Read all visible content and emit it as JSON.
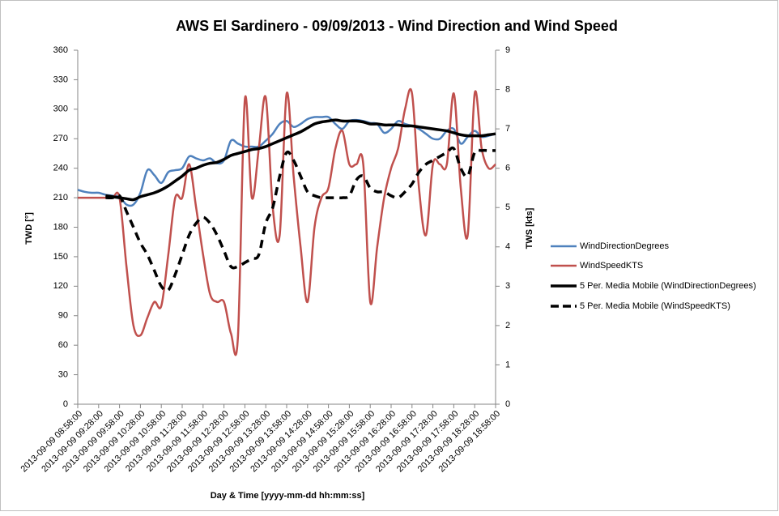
{
  "chart_data": {
    "type": "line",
    "title": "AWS El Sardinero - 09/09/2013 - Wind Direction and Wind Speed",
    "x_label": "Day & Time [yyyy-mm-dd hh:mm:ss]",
    "y_label": "TWD [°]",
    "y2_label": "TWS [kts]",
    "categories": [
      "2013-09-09 08:58:00",
      null,
      null,
      "2013-09-09 09:28:00",
      null,
      null,
      "2013-09-09 09:58:00",
      null,
      null,
      "2013-09-09 10:28:00",
      null,
      null,
      "2013-09-09 10:58:00",
      null,
      null,
      "2013-09-09 11:28:00",
      null,
      null,
      "2013-09-09 11:58:00",
      null,
      null,
      "2013-09-09 12:28:00",
      null,
      null,
      "2013-09-09 12:58:00",
      null,
      null,
      "2013-09-09 13:28:00",
      null,
      null,
      "2013-09-09 13:58:00",
      null,
      null,
      "2013-09-09 14:28:00",
      null,
      null,
      "2013-09-09 14:58:00",
      null,
      null,
      "2013-09-09 15:28:00",
      null,
      null,
      "2013-09-09 15:58:00",
      null,
      null,
      "2013-09-09 16:28:00",
      null,
      null,
      "2013-09-09 16:58:00",
      null,
      null,
      "2013-09-09 17:28:00",
      null,
      null,
      "2013-09-09 17:58:00",
      null,
      null,
      "2013-09-09 18:28:00",
      null,
      null,
      "2013-09-09 18:58:00"
    ],
    "series": [
      {
        "name": "WindDirectionDegrees",
        "color": "#4f81bd",
        "axis": "y",
        "values": [
          218,
          216,
          215,
          215,
          213,
          212,
          211,
          203,
          203,
          215,
          238,
          233,
          225,
          236,
          238,
          240,
          252,
          250,
          248,
          250,
          245,
          248,
          268,
          265,
          262,
          262,
          262,
          268,
          275,
          285,
          288,
          282,
          285,
          290,
          292,
          292,
          292,
          285,
          280,
          288,
          289,
          288,
          286,
          285,
          276,
          280,
          288,
          285,
          283,
          280,
          275,
          270,
          270,
          278,
          280,
          265,
          272,
          278,
          272,
          273,
          275
        ]
      },
      {
        "name": "WindSpeedKTS",
        "color": "#c0504d",
        "axis": "y2",
        "values": [
          5.25,
          5.25,
          5.25,
          5.25,
          5.25,
          5.25,
          5.25,
          3.5,
          2.0,
          1.75,
          2.2,
          2.6,
          2.5,
          3.8,
          5.25,
          5.25,
          6.1,
          5.0,
          3.8,
          2.8,
          2.6,
          2.6,
          1.8,
          1.7,
          7.75,
          5.25,
          6.5,
          7.8,
          5.0,
          4.3,
          7.9,
          5.8,
          4.0,
          2.6,
          4.5,
          5.25,
          5.5,
          6.5,
          6.95,
          6.1,
          6.1,
          6.1,
          2.6,
          4.0,
          5.25,
          6.0,
          6.5,
          7.5,
          7.9,
          5.5,
          4.3,
          6.1,
          6.1,
          6.1,
          7.9,
          5.5,
          4.3,
          7.9,
          6.5,
          6.0,
          6.1
        ]
      },
      {
        "name": "5 Per. Media Mobile (WindDirectionDegrees)",
        "color": "#000000",
        "axis": "y",
        "values": [
          null,
          null,
          null,
          null,
          212,
          211,
          210,
          209,
          208,
          211,
          213,
          215,
          218,
          222,
          227,
          232,
          238,
          240,
          243,
          245,
          246,
          249,
          253,
          255,
          257,
          259,
          260,
          262,
          265,
          268,
          271,
          274,
          277,
          281,
          285,
          287,
          288,
          289,
          288,
          288,
          288,
          287,
          285,
          285,
          284,
          284,
          284,
          283,
          283,
          282,
          281,
          280,
          279,
          278,
          276,
          274,
          273,
          273,
          273,
          274,
          275
        ]
      },
      {
        "name": "5 Per. Media Mobile (WindSpeedKTS)",
        "color": "#000000",
        "axis": "y2",
        "dashed": true,
        "values": [
          null,
          null,
          null,
          null,
          5.25,
          5.25,
          5.3,
          4.9,
          4.5,
          4.1,
          3.8,
          3.4,
          3.0,
          2.9,
          3.3,
          3.8,
          4.3,
          4.6,
          4.75,
          4.6,
          4.3,
          3.9,
          3.5,
          3.5,
          3.6,
          3.7,
          3.8,
          4.6,
          5.0,
          5.8,
          6.4,
          6.2,
          5.8,
          5.4,
          5.3,
          5.25,
          5.25,
          5.25,
          5.25,
          5.3,
          5.7,
          5.8,
          5.5,
          5.4,
          5.4,
          5.3,
          5.25,
          5.4,
          5.6,
          5.9,
          6.1,
          6.2,
          6.3,
          6.4,
          6.5,
          6.0,
          5.8,
          6.4,
          6.45,
          6.45,
          6.45
        ]
      }
    ],
    "ylim": [
      0,
      360
    ],
    "yticks": [
      0,
      30,
      60,
      90,
      120,
      150,
      180,
      210,
      240,
      270,
      300,
      330,
      360
    ],
    "y2lim": [
      0,
      9
    ],
    "y2ticks": [
      0,
      1,
      2,
      3,
      4,
      5,
      6,
      7,
      8,
      9
    ],
    "grid": false,
    "legend": "right"
  }
}
